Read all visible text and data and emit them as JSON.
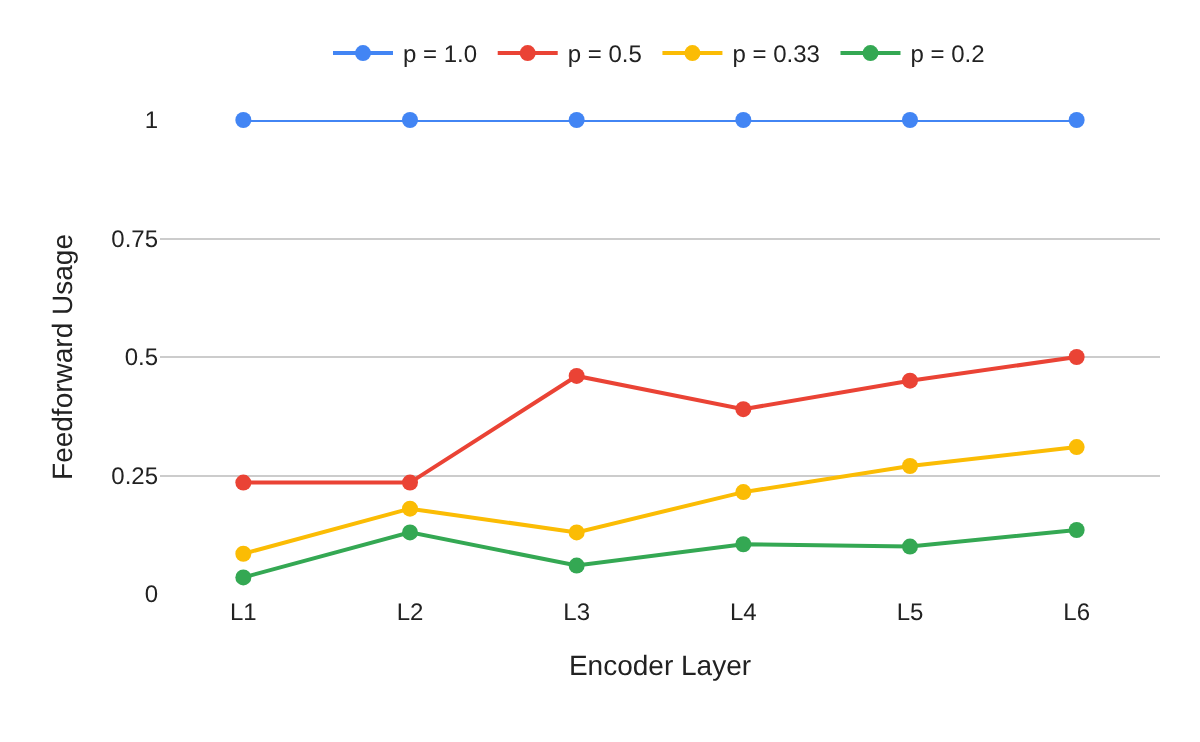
{
  "chart_data": {
    "type": "line",
    "xlabel": "Encoder Layer",
    "ylabel": "Feedforward Usage",
    "categories": [
      "L1",
      "L2",
      "L3",
      "L4",
      "L5",
      "L6"
    ],
    "series": [
      {
        "name": "p = 1.0",
        "color": "#4285f4",
        "values": [
          1,
          1,
          1,
          1,
          1,
          1
        ]
      },
      {
        "name": "p = 0.5",
        "color": "#ea4335",
        "values": [
          0.235,
          0.235,
          0.46,
          0.39,
          0.45,
          0.5
        ]
      },
      {
        "name": "p = 0.33",
        "color": "#fbbc04",
        "values": [
          0.085,
          0.18,
          0.13,
          0.215,
          0.27,
          0.31
        ]
      },
      {
        "name": "p = 0.2",
        "color": "#34a853",
        "values": [
          0.035,
          0.13,
          0.06,
          0.105,
          0.1,
          0.135
        ]
      }
    ],
    "ylim": [
      0,
      1
    ],
    "yticks": [
      0,
      0.25,
      0.5,
      0.75,
      1
    ],
    "grid": "y",
    "legend": "top",
    "marker": "circle",
    "line_style": "solid"
  }
}
